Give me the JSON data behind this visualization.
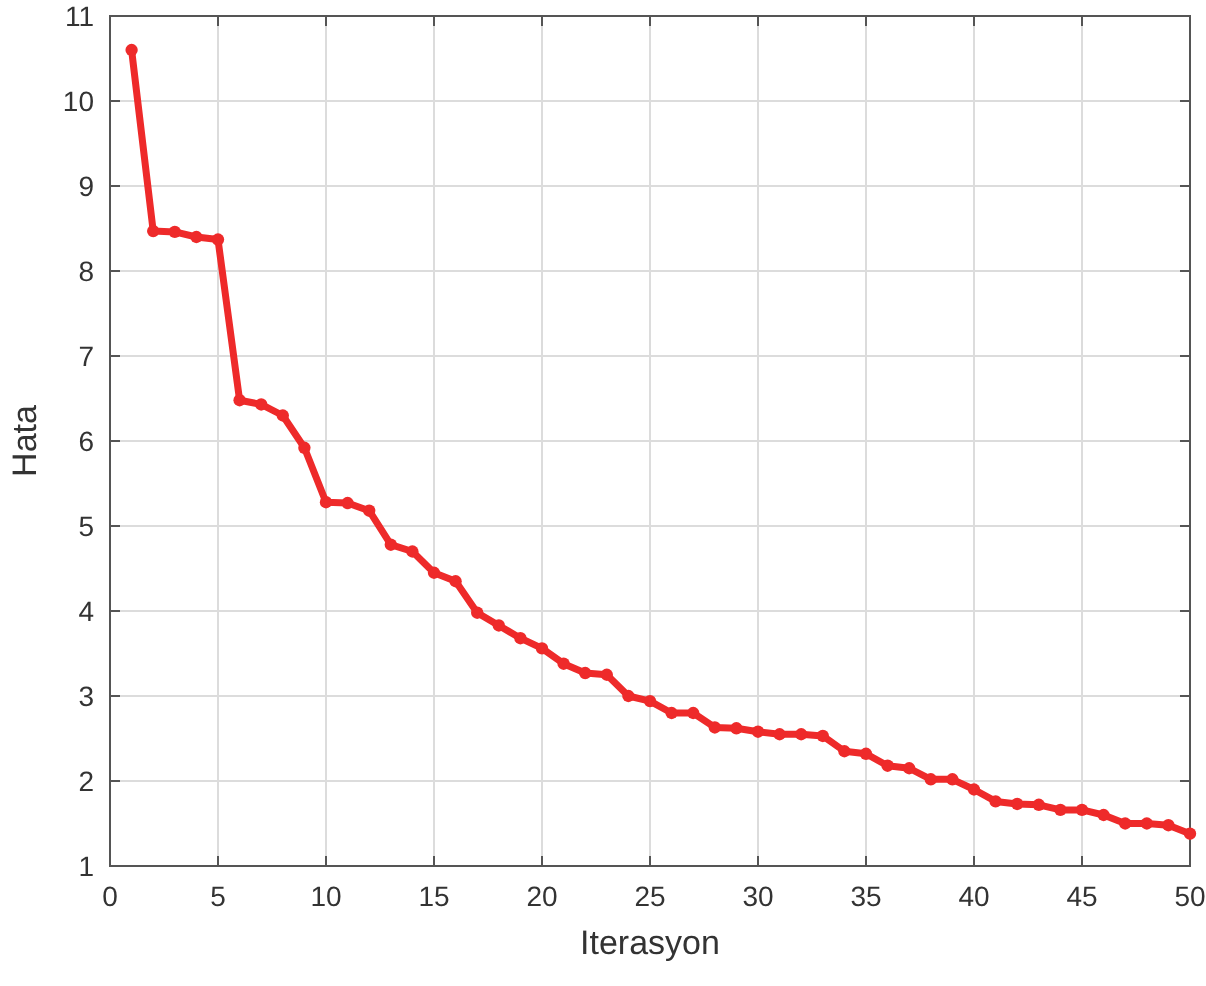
{
  "chart_data": {
    "type": "line",
    "xlabel": "Iterasyon",
    "ylabel": "Hata",
    "x": [
      1,
      2,
      3,
      4,
      5,
      6,
      7,
      8,
      9,
      10,
      11,
      12,
      13,
      14,
      15,
      16,
      17,
      18,
      19,
      20,
      21,
      22,
      23,
      24,
      25,
      26,
      27,
      28,
      29,
      30,
      31,
      32,
      33,
      34,
      35,
      36,
      37,
      38,
      39,
      40,
      41,
      42,
      43,
      44,
      45,
      46,
      47,
      48,
      49,
      50
    ],
    "series": [
      {
        "color": "#ee2a2a",
        "values": [
          10.6,
          8.47,
          8.46,
          8.4,
          8.37,
          6.48,
          6.43,
          6.3,
          5.92,
          5.28,
          5.27,
          5.18,
          4.78,
          4.7,
          4.45,
          4.35,
          3.98,
          3.83,
          3.68,
          3.56,
          3.38,
          3.27,
          3.25,
          3.0,
          2.94,
          2.8,
          2.8,
          2.63,
          2.62,
          2.58,
          2.55,
          2.55,
          2.53,
          2.35,
          2.32,
          2.18,
          2.15,
          2.02,
          2.02,
          1.9,
          1.76,
          1.73,
          1.72,
          1.66,
          1.66,
          1.6,
          1.5,
          1.5,
          1.48,
          1.38
        ]
      }
    ],
    "xlim": [
      0,
      50
    ],
    "xticks": [
      0,
      5,
      10,
      15,
      20,
      25,
      30,
      35,
      40,
      45,
      50
    ],
    "ylim": [
      1,
      11
    ],
    "yticks": [
      1,
      2,
      3,
      4,
      5,
      6,
      7,
      8,
      9,
      10,
      11
    ],
    "grid": true,
    "marker": "circle",
    "line_style": "solid"
  }
}
